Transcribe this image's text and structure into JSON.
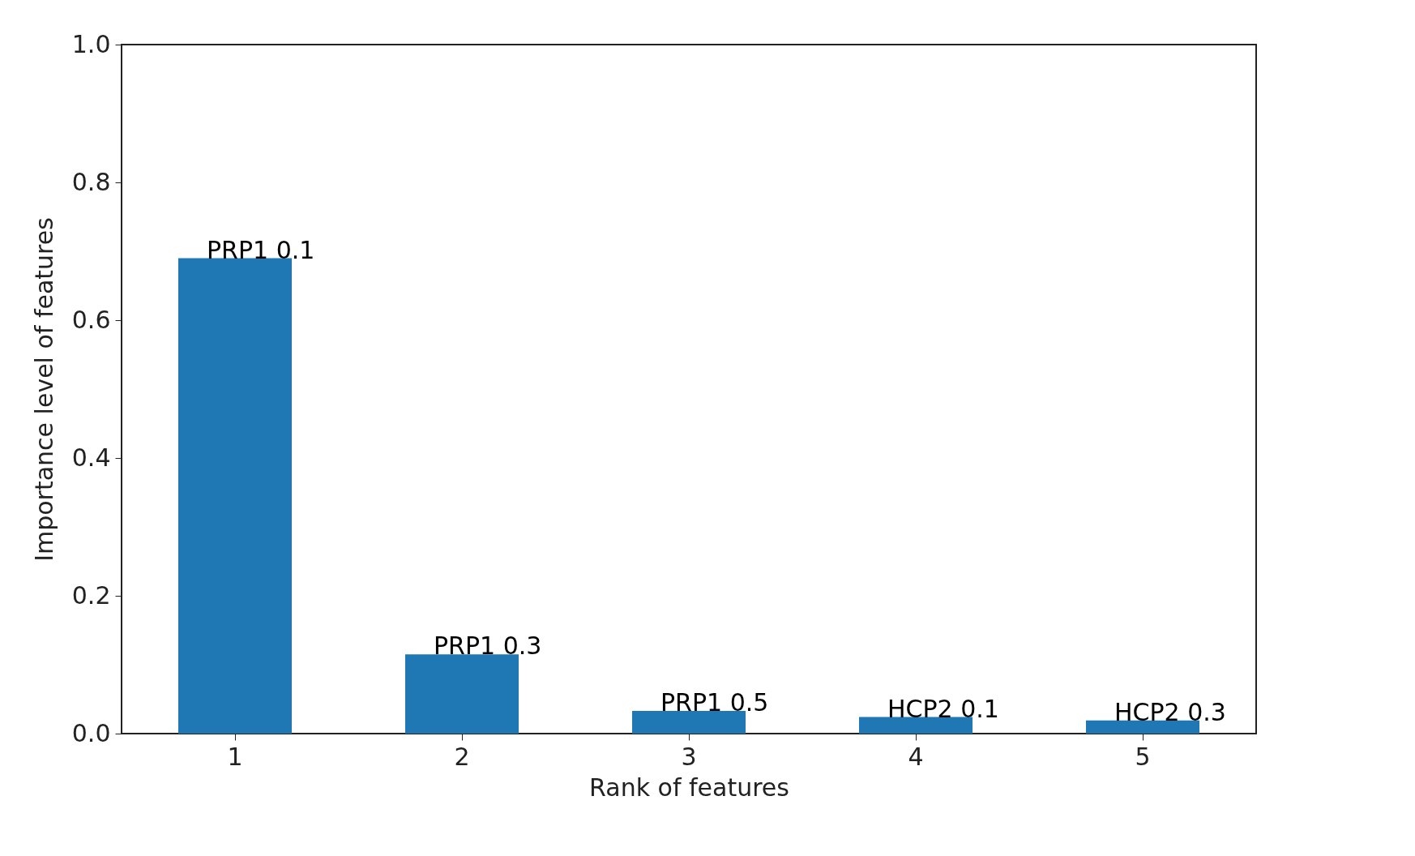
{
  "chart_data": {
    "type": "bar",
    "xlabel": "Rank of features",
    "ylabel": "Importance level of features",
    "categories": [
      "1",
      "2",
      "3",
      "4",
      "5"
    ],
    "values": [
      0.69,
      0.115,
      0.033,
      0.024,
      0.019
    ],
    "color": "#1f77b4",
    "ylim": [
      0,
      1.0
    ],
    "yticks": [
      {
        "value": 0,
        "label": "0.0"
      },
      {
        "value": 0.2,
        "label": "0.2"
      },
      {
        "value": 0.4,
        "label": "0.4"
      },
      {
        "value": 0.6,
        "label": "0.6"
      },
      {
        "value": 0.8,
        "label": "0.8"
      },
      {
        "value": 1.0,
        "label": "1.0"
      }
    ],
    "annotations": [
      {
        "text": "PRP1 0.1",
        "x": "1",
        "y": 0.69
      },
      {
        "text": "PRP1 0.3",
        "x": "2",
        "y": 0.115
      },
      {
        "text": "PRP1 0.5",
        "x": "3",
        "y": 0.033
      },
      {
        "text": "HCP2 0.1",
        "x": "4",
        "y": 0.024
      },
      {
        "text": "HCP2 0.3",
        "x": "5",
        "y": 0.019
      }
    ],
    "grid": false
  }
}
